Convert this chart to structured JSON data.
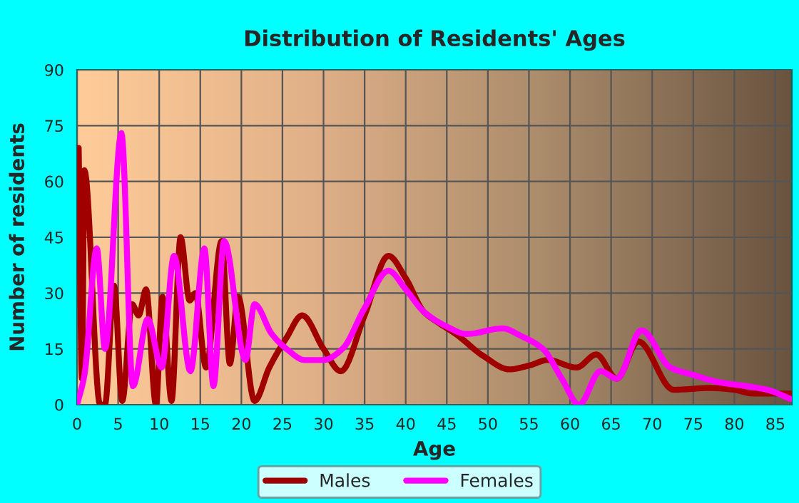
{
  "chart_data": {
    "type": "line",
    "title": "Distribution of Residents' Ages",
    "xlabel": "Age",
    "ylabel": "Number of residents",
    "xlim": [
      0,
      87
    ],
    "xticks": [
      0,
      5,
      10,
      15,
      20,
      25,
      30,
      35,
      40,
      45,
      50,
      55,
      60,
      65,
      70,
      75,
      80,
      85
    ],
    "ylim": [
      0,
      90
    ],
    "yticks": [
      0,
      15,
      30,
      45,
      60,
      75,
      90
    ],
    "grid": true,
    "legend": "bottom",
    "marker": "none",
    "line_style": "solid",
    "series": [
      {
        "name": "Males",
        "color": "#a00000",
        "x": [
          0.2,
          0.6,
          0.9,
          2.8,
          3.4,
          4.5,
          5.5,
          6.7,
          7.5,
          8.4,
          9.6,
          10.4,
          11.5,
          12.6,
          13.7,
          14.4,
          15.7,
          17.6,
          18.6,
          19.6,
          21.6,
          23.4,
          25.5,
          27.4,
          30,
          32.1,
          35,
          37.9,
          40,
          42.2,
          44,
          46.1,
          49.5,
          52.6,
          55,
          57.3,
          60.8,
          63.2,
          65.7,
          68.3,
          72.6,
          77,
          80,
          82.2,
          86.9
        ],
        "values": [
          69,
          7,
          63,
          0,
          0,
          32,
          1,
          27,
          24,
          31,
          0,
          29,
          1,
          45,
          28,
          30,
          10,
          44,
          11,
          29,
          1,
          10,
          18,
          24,
          15,
          9,
          24,
          40,
          34,
          25,
          22,
          19,
          13,
          9.5,
          10.5,
          12,
          10,
          13.5,
          7,
          17,
          4,
          4.5,
          4,
          3,
          3
        ]
      },
      {
        "name": "Females",
        "color": "#ff00ff",
        "x": [
          0,
          0.9,
          2.4,
          3.4,
          5.4,
          6.8,
          8.6,
          10.3,
          11.8,
          13.8,
          15.5,
          16.6,
          17.9,
          20.5,
          21.6,
          23.7,
          25.5,
          27.7,
          30,
          32.3,
          35,
          37.9,
          40,
          42.2,
          45,
          47.4,
          51.8,
          54,
          56.7,
          59,
          61.1,
          63.7,
          65.7,
          68.7,
          72.2,
          75,
          78.2,
          81.4,
          84,
          86.9
        ],
        "values": [
          0,
          8,
          42,
          15,
          73,
          5,
          23,
          10,
          40,
          9,
          42,
          5,
          44,
          12,
          27,
          19,
          15,
          12,
          12,
          15,
          26,
          36,
          31,
          25,
          21,
          19,
          20.5,
          18.5,
          15,
          7,
          0,
          9,
          7,
          20,
          10,
          8,
          6,
          5,
          4,
          1.5
        ]
      }
    ]
  }
}
